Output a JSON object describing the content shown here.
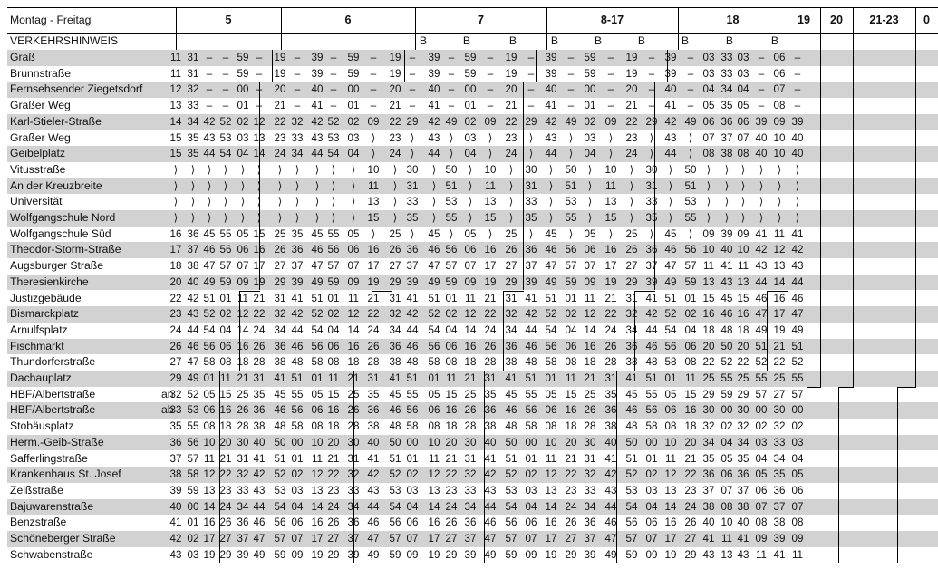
{
  "header": {
    "title": "Montag - Freitag",
    "hours": [
      "5",
      "6",
      "7",
      "8-17",
      "18",
      "19",
      "20",
      "21-23",
      "0"
    ]
  },
  "notice": {
    "label": "VERKEHRSHINWEIS",
    "marks": [
      "B",
      "B",
      "B",
      "B",
      "B",
      "B",
      "B",
      "B",
      "B"
    ]
  },
  "stops": [
    {
      "name": "Graß",
      "times": [
        "11",
        "31",
        "–",
        "–",
        "59",
        "–",
        "19",
        "–",
        "39",
        "–",
        "59",
        "–",
        "19",
        "–",
        "39",
        "–",
        "59",
        "–",
        "19",
        "–",
        "39",
        "–",
        "59",
        "–",
        "19",
        "–",
        "39",
        "–",
        "03",
        "33",
        "03",
        "–",
        "06",
        "–"
      ]
    },
    {
      "name": "Brunnstraße",
      "times": [
        "11",
        "31",
        "–",
        "–",
        "59",
        "–",
        "19",
        "–",
        "39",
        "–",
        "59",
        "–",
        "19",
        "–",
        "39",
        "–",
        "59",
        "–",
        "19",
        "–",
        "39",
        "–",
        "59",
        "–",
        "19",
        "–",
        "39",
        "–",
        "03",
        "33",
        "03",
        "–",
        "06",
        "–"
      ]
    },
    {
      "name": "Fernsehsender Ziegetsdorf",
      "times": [
        "12",
        "32",
        "–",
        "–",
        "00",
        "–",
        "20",
        "–",
        "40",
        "–",
        "00",
        "–",
        "20",
        "–",
        "40",
        "–",
        "00",
        "–",
        "20",
        "–",
        "40",
        "–",
        "00",
        "–",
        "20",
        "–",
        "40",
        "–",
        "04",
        "34",
        "04",
        "–",
        "07",
        "–"
      ]
    },
    {
      "name": "Graßer Weg",
      "times": [
        "13",
        "33",
        "–",
        "–",
        "01",
        "–",
        "21",
        "–",
        "41",
        "–",
        "01",
        "–",
        "21",
        "–",
        "41",
        "–",
        "01",
        "–",
        "21",
        "–",
        "41",
        "–",
        "01",
        "–",
        "21",
        "–",
        "41",
        "–",
        "05",
        "35",
        "05",
        "–",
        "08",
        "–"
      ]
    },
    {
      "name": "Karl-Stieler-Straße",
      "times": [
        "14",
        "34",
        "42",
        "52",
        "02",
        "12",
        "22",
        "32",
        "42",
        "52",
        "02",
        "09",
        "22",
        "29",
        "42",
        "49",
        "02",
        "09",
        "22",
        "29",
        "42",
        "49",
        "02",
        "09",
        "22",
        "29",
        "42",
        "49",
        "06",
        "36",
        "06",
        "39",
        "09",
        "39"
      ]
    },
    {
      "name": "Graßer Weg",
      "times": [
        "15",
        "35",
        "43",
        "53",
        "03",
        "13",
        "23",
        "33",
        "43",
        "53",
        "03",
        "⟩",
        "23",
        "⟩",
        "43",
        "⟩",
        "03",
        "⟩",
        "23",
        "⟩",
        "43",
        "⟩",
        "03",
        "⟩",
        "23",
        "⟩",
        "43",
        "⟩",
        "07",
        "37",
        "07",
        "40",
        "10",
        "40"
      ]
    },
    {
      "name": "Geibelplatz",
      "times": [
        "15",
        "35",
        "44",
        "54",
        "04",
        "14",
        "24",
        "34",
        "44",
        "54",
        "04",
        "⟩",
        "24",
        "⟩",
        "44",
        "⟩",
        "04",
        "⟩",
        "24",
        "⟩",
        "44",
        "⟩",
        "04",
        "⟩",
        "24",
        "⟩",
        "44",
        "⟩",
        "08",
        "38",
        "08",
        "40",
        "10",
        "40"
      ]
    },
    {
      "name": "Vitusstraße",
      "times": [
        "⟩",
        "⟩",
        "⟩",
        "⟩",
        "⟩",
        "⟩",
        "⟩",
        "⟩",
        "⟩",
        "⟩",
        "⟩",
        "10",
        "⟩",
        "30",
        "⟩",
        "50",
        "⟩",
        "10",
        "⟩",
        "30",
        "⟩",
        "50",
        "⟩",
        "10",
        "⟩",
        "30",
        "⟩",
        "50",
        "⟩",
        "⟩",
        "⟩",
        "⟩",
        "⟩",
        "⟩"
      ]
    },
    {
      "name": "An der Kreuzbreite",
      "times": [
        "⟩",
        "⟩",
        "⟩",
        "⟩",
        "⟩",
        "⟩",
        "⟩",
        "⟩",
        "⟩",
        "⟩",
        "⟩",
        "11",
        "⟩",
        "31",
        "⟩",
        "51",
        "⟩",
        "11",
        "⟩",
        "31",
        "⟩",
        "51",
        "⟩",
        "11",
        "⟩",
        "31",
        "⟩",
        "51",
        "⟩",
        "⟩",
        "⟩",
        "⟩",
        "⟩",
        "⟩"
      ]
    },
    {
      "name": "Universität",
      "times": [
        "⟩",
        "⟩",
        "⟩",
        "⟩",
        "⟩",
        "⟩",
        "⟩",
        "⟩",
        "⟩",
        "⟩",
        "⟩",
        "13",
        "⟩",
        "33",
        "⟩",
        "53",
        "⟩",
        "13",
        "⟩",
        "33",
        "⟩",
        "53",
        "⟩",
        "13",
        "⟩",
        "33",
        "⟩",
        "53",
        "⟩",
        "⟩",
        "⟩",
        "⟩",
        "⟩",
        "⟩"
      ]
    },
    {
      "name": "Wolfgangschule Nord",
      "times": [
        "⟩",
        "⟩",
        "⟩",
        "⟩",
        "⟩",
        "⟩",
        "⟩",
        "⟩",
        "⟩",
        "⟩",
        "⟩",
        "15",
        "⟩",
        "35",
        "⟩",
        "55",
        "⟩",
        "15",
        "⟩",
        "35",
        "⟩",
        "55",
        "⟩",
        "15",
        "⟩",
        "35",
        "⟩",
        "55",
        "⟩",
        "⟩",
        "⟩",
        "⟩",
        "⟩",
        "⟩"
      ]
    },
    {
      "name": "Wolfgangschule Süd",
      "times": [
        "16",
        "36",
        "45",
        "55",
        "05",
        "15",
        "25",
        "35",
        "45",
        "55",
        "05",
        "⟩",
        "25",
        "⟩",
        "45",
        "⟩",
        "05",
        "⟩",
        "25",
        "⟩",
        "45",
        "⟩",
        "05",
        "⟩",
        "25",
        "⟩",
        "45",
        "⟩",
        "09",
        "39",
        "09",
        "41",
        "11",
        "41"
      ]
    },
    {
      "name": "Theodor-Storm-Straße",
      "times": [
        "17",
        "37",
        "46",
        "56",
        "06",
        "16",
        "26",
        "36",
        "46",
        "56",
        "06",
        "16",
        "26",
        "36",
        "46",
        "56",
        "06",
        "16",
        "26",
        "36",
        "46",
        "56",
        "06",
        "16",
        "26",
        "36",
        "46",
        "56",
        "10",
        "40",
        "10",
        "42",
        "12",
        "42"
      ]
    },
    {
      "name": "Augsburger Straße",
      "times": [
        "18",
        "38",
        "47",
        "57",
        "07",
        "17",
        "27",
        "37",
        "47",
        "57",
        "07",
        "17",
        "27",
        "37",
        "47",
        "57",
        "07",
        "17",
        "27",
        "37",
        "47",
        "57",
        "07",
        "17",
        "27",
        "37",
        "47",
        "57",
        "11",
        "41",
        "11",
        "43",
        "13",
        "43"
      ]
    },
    {
      "name": "Theresienkirche",
      "times": [
        "20",
        "40",
        "49",
        "59",
        "09",
        "19",
        "29",
        "39",
        "49",
        "59",
        "09",
        "19",
        "29",
        "39",
        "49",
        "59",
        "09",
        "19",
        "29",
        "39",
        "49",
        "59",
        "09",
        "19",
        "29",
        "39",
        "49",
        "59",
        "13",
        "43",
        "13",
        "44",
        "14",
        "44"
      ]
    },
    {
      "name": "Justizgebäude",
      "times": [
        "22",
        "42",
        "51",
        "01",
        "11",
        "21",
        "31",
        "41",
        "51",
        "01",
        "11",
        "21",
        "31",
        "41",
        "51",
        "01",
        "11",
        "21",
        "31",
        "41",
        "51",
        "01",
        "11",
        "21",
        "31",
        "41",
        "51",
        "01",
        "15",
        "45",
        "15",
        "46",
        "16",
        "46"
      ]
    },
    {
      "name": "Bismarckplatz",
      "times": [
        "23",
        "43",
        "52",
        "02",
        "12",
        "22",
        "32",
        "42",
        "52",
        "02",
        "12",
        "22",
        "32",
        "42",
        "52",
        "02",
        "12",
        "22",
        "32",
        "42",
        "52",
        "02",
        "12",
        "22",
        "32",
        "42",
        "52",
        "02",
        "16",
        "46",
        "16",
        "47",
        "17",
        "47"
      ]
    },
    {
      "name": "Arnulfsplatz",
      "times": [
        "24",
        "44",
        "54",
        "04",
        "14",
        "24",
        "34",
        "44",
        "54",
        "04",
        "14",
        "24",
        "34",
        "44",
        "54",
        "04",
        "14",
        "24",
        "34",
        "44",
        "54",
        "04",
        "14",
        "24",
        "34",
        "44",
        "54",
        "04",
        "18",
        "48",
        "18",
        "49",
        "19",
        "49"
      ]
    },
    {
      "name": "Fischmarkt",
      "times": [
        "26",
        "46",
        "56",
        "06",
        "16",
        "26",
        "36",
        "46",
        "56",
        "06",
        "16",
        "26",
        "36",
        "46",
        "56",
        "06",
        "16",
        "26",
        "36",
        "46",
        "56",
        "06",
        "16",
        "26",
        "36",
        "46",
        "56",
        "06",
        "20",
        "50",
        "20",
        "51",
        "21",
        "51"
      ]
    },
    {
      "name": "Thundorferstraße",
      "times": [
        "27",
        "47",
        "58",
        "08",
        "18",
        "28",
        "38",
        "48",
        "58",
        "08",
        "18",
        "28",
        "38",
        "48",
        "58",
        "08",
        "18",
        "28",
        "38",
        "48",
        "58",
        "08",
        "18",
        "28",
        "38",
        "48",
        "58",
        "08",
        "22",
        "52",
        "22",
        "52",
        "22",
        "52"
      ]
    },
    {
      "name": "Dachauplatz",
      "times": [
        "29",
        "49",
        "01",
        "11",
        "21",
        "31",
        "41",
        "51",
        "01",
        "11",
        "21",
        "31",
        "41",
        "51",
        "01",
        "11",
        "21",
        "31",
        "41",
        "51",
        "01",
        "11",
        "21",
        "31",
        "41",
        "51",
        "01",
        "11",
        "25",
        "55",
        "25",
        "55",
        "25",
        "55"
      ]
    },
    {
      "name": "HBF/Albertstraße",
      "dir": "an",
      "times": [
        "32",
        "52",
        "05",
        "15",
        "25",
        "35",
        "45",
        "55",
        "05",
        "15",
        "25",
        "35",
        "45",
        "55",
        "05",
        "15",
        "25",
        "35",
        "45",
        "55",
        "05",
        "15",
        "25",
        "35",
        "45",
        "55",
        "05",
        "15",
        "29",
        "59",
        "29",
        "57",
        "27",
        "57"
      ]
    },
    {
      "name": "HBF/Albertstraße",
      "dir": "ab",
      "times": [
        "33",
        "53",
        "06",
        "16",
        "26",
        "36",
        "46",
        "56",
        "06",
        "16",
        "26",
        "36",
        "46",
        "56",
        "06",
        "16",
        "26",
        "36",
        "46",
        "56",
        "06",
        "16",
        "26",
        "36",
        "46",
        "56",
        "06",
        "16",
        "30",
        "00",
        "30",
        "00",
        "30",
        "00"
      ]
    },
    {
      "name": "Stobäusplatz",
      "times": [
        "35",
        "55",
        "08",
        "18",
        "28",
        "38",
        "48",
        "58",
        "08",
        "18",
        "28",
        "38",
        "48",
        "58",
        "08",
        "18",
        "28",
        "38",
        "48",
        "58",
        "08",
        "18",
        "28",
        "38",
        "48",
        "58",
        "08",
        "18",
        "32",
        "02",
        "32",
        "02",
        "32",
        "02"
      ]
    },
    {
      "name": "Herm.-Geib-Straße",
      "times": [
        "36",
        "56",
        "10",
        "20",
        "30",
        "40",
        "50",
        "00",
        "10",
        "20",
        "30",
        "40",
        "50",
        "00",
        "10",
        "20",
        "30",
        "40",
        "50",
        "00",
        "10",
        "20",
        "30",
        "40",
        "50",
        "00",
        "10",
        "20",
        "34",
        "04",
        "34",
        "03",
        "33",
        "03"
      ]
    },
    {
      "name": "Safferlingstraße",
      "times": [
        "37",
        "57",
        "11",
        "21",
        "31",
        "41",
        "51",
        "01",
        "11",
        "21",
        "31",
        "41",
        "51",
        "01",
        "11",
        "21",
        "31",
        "41",
        "51",
        "01",
        "11",
        "21",
        "31",
        "41",
        "51",
        "01",
        "11",
        "21",
        "35",
        "05",
        "35",
        "04",
        "34",
        "04"
      ]
    },
    {
      "name": "Krankenhaus St. Josef",
      "times": [
        "38",
        "58",
        "12",
        "22",
        "32",
        "42",
        "52",
        "02",
        "12",
        "22",
        "32",
        "42",
        "52",
        "02",
        "12",
        "22",
        "32",
        "42",
        "52",
        "02",
        "12",
        "22",
        "32",
        "42",
        "52",
        "02",
        "12",
        "22",
        "36",
        "06",
        "36",
        "05",
        "35",
        "05"
      ]
    },
    {
      "name": "Zeißstraße",
      "times": [
        "39",
        "59",
        "13",
        "23",
        "33",
        "43",
        "53",
        "03",
        "13",
        "23",
        "33",
        "43",
        "53",
        "03",
        "13",
        "23",
        "33",
        "43",
        "53",
        "03",
        "13",
        "23",
        "33",
        "43",
        "53",
        "03",
        "13",
        "23",
        "37",
        "07",
        "37",
        "06",
        "36",
        "06"
      ]
    },
    {
      "name": "Bajuwarenstraße",
      "times": [
        "40",
        "00",
        "14",
        "24",
        "34",
        "44",
        "54",
        "04",
        "14",
        "24",
        "34",
        "44",
        "54",
        "04",
        "14",
        "24",
        "34",
        "44",
        "54",
        "04",
        "14",
        "24",
        "34",
        "44",
        "54",
        "04",
        "14",
        "24",
        "38",
        "08",
        "38",
        "07",
        "37",
        "07"
      ]
    },
    {
      "name": "Benzstraße",
      "times": [
        "41",
        "01",
        "16",
        "26",
        "36",
        "46",
        "56",
        "06",
        "16",
        "26",
        "36",
        "46",
        "56",
        "06",
        "16",
        "26",
        "36",
        "46",
        "56",
        "06",
        "16",
        "26",
        "36",
        "46",
        "56",
        "06",
        "16",
        "26",
        "40",
        "10",
        "40",
        "08",
        "38",
        "08"
      ]
    },
    {
      "name": "Schöneberger Straße",
      "times": [
        "42",
        "02",
        "17",
        "27",
        "37",
        "47",
        "57",
        "07",
        "17",
        "27",
        "37",
        "47",
        "57",
        "07",
        "17",
        "27",
        "37",
        "47",
        "57",
        "07",
        "17",
        "27",
        "37",
        "47",
        "57",
        "07",
        "17",
        "27",
        "41",
        "11",
        "41",
        "09",
        "39",
        "09"
      ]
    },
    {
      "name": "Schwabenstraße",
      "times": [
        "43",
        "03",
        "19",
        "29",
        "39",
        "49",
        "59",
        "09",
        "19",
        "29",
        "39",
        "49",
        "59",
        "09",
        "19",
        "29",
        "39",
        "49",
        "59",
        "09",
        "19",
        "29",
        "39",
        "49",
        "59",
        "09",
        "19",
        "29",
        "43",
        "13",
        "43",
        "11",
        "41",
        "11"
      ]
    }
  ]
}
